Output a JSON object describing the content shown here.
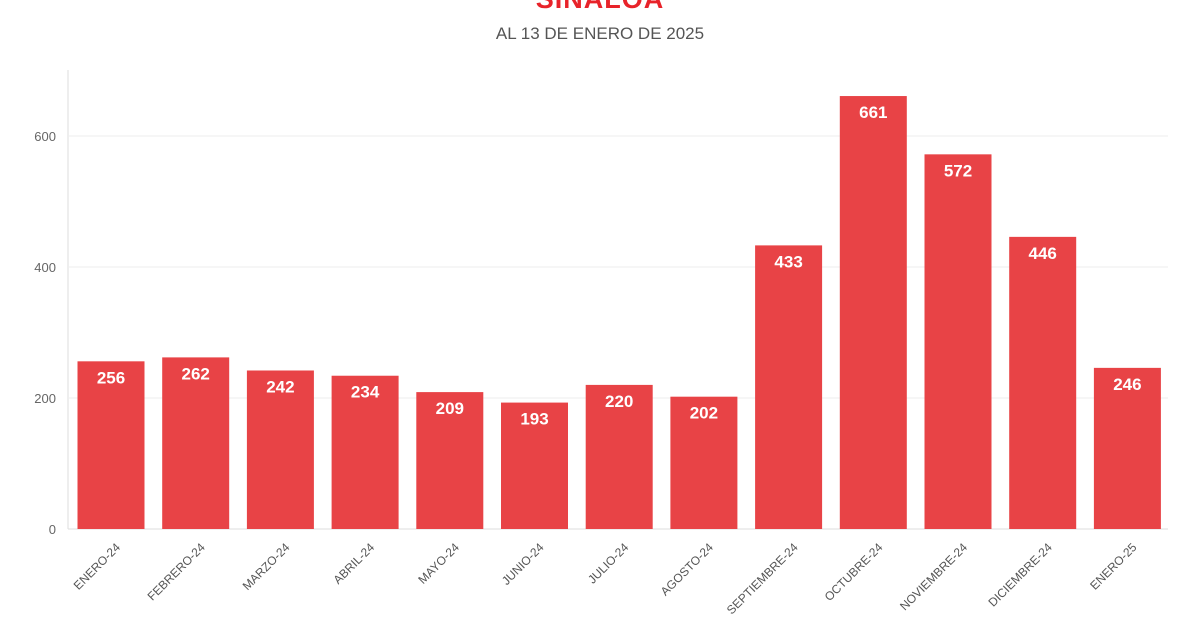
{
  "chart_data": {
    "type": "bar",
    "title": "SINALOA",
    "subtitle": "AL 13 DE ENERO DE 2025",
    "categories": [
      "ENERO-24",
      "FEBRERO-24",
      "MARZO-24",
      "ABRIL-24",
      "MAYO-24",
      "JUNIO-24",
      "JULIO-24",
      "AGOSTO-24",
      "SEPTIEMBRE-24",
      "OCTUBRE-24",
      "NOVIEMBRE-24",
      "DICIEMBRE-24",
      "ENERO-25"
    ],
    "values": [
      256,
      262,
      242,
      234,
      209,
      193,
      220,
      202,
      433,
      661,
      572,
      446,
      246
    ],
    "yticks": [
      0,
      200,
      400,
      600
    ],
    "ylim": [
      0,
      670
    ],
    "grid": true,
    "bar_color": "#e84346",
    "title_color": "#e8232a"
  }
}
